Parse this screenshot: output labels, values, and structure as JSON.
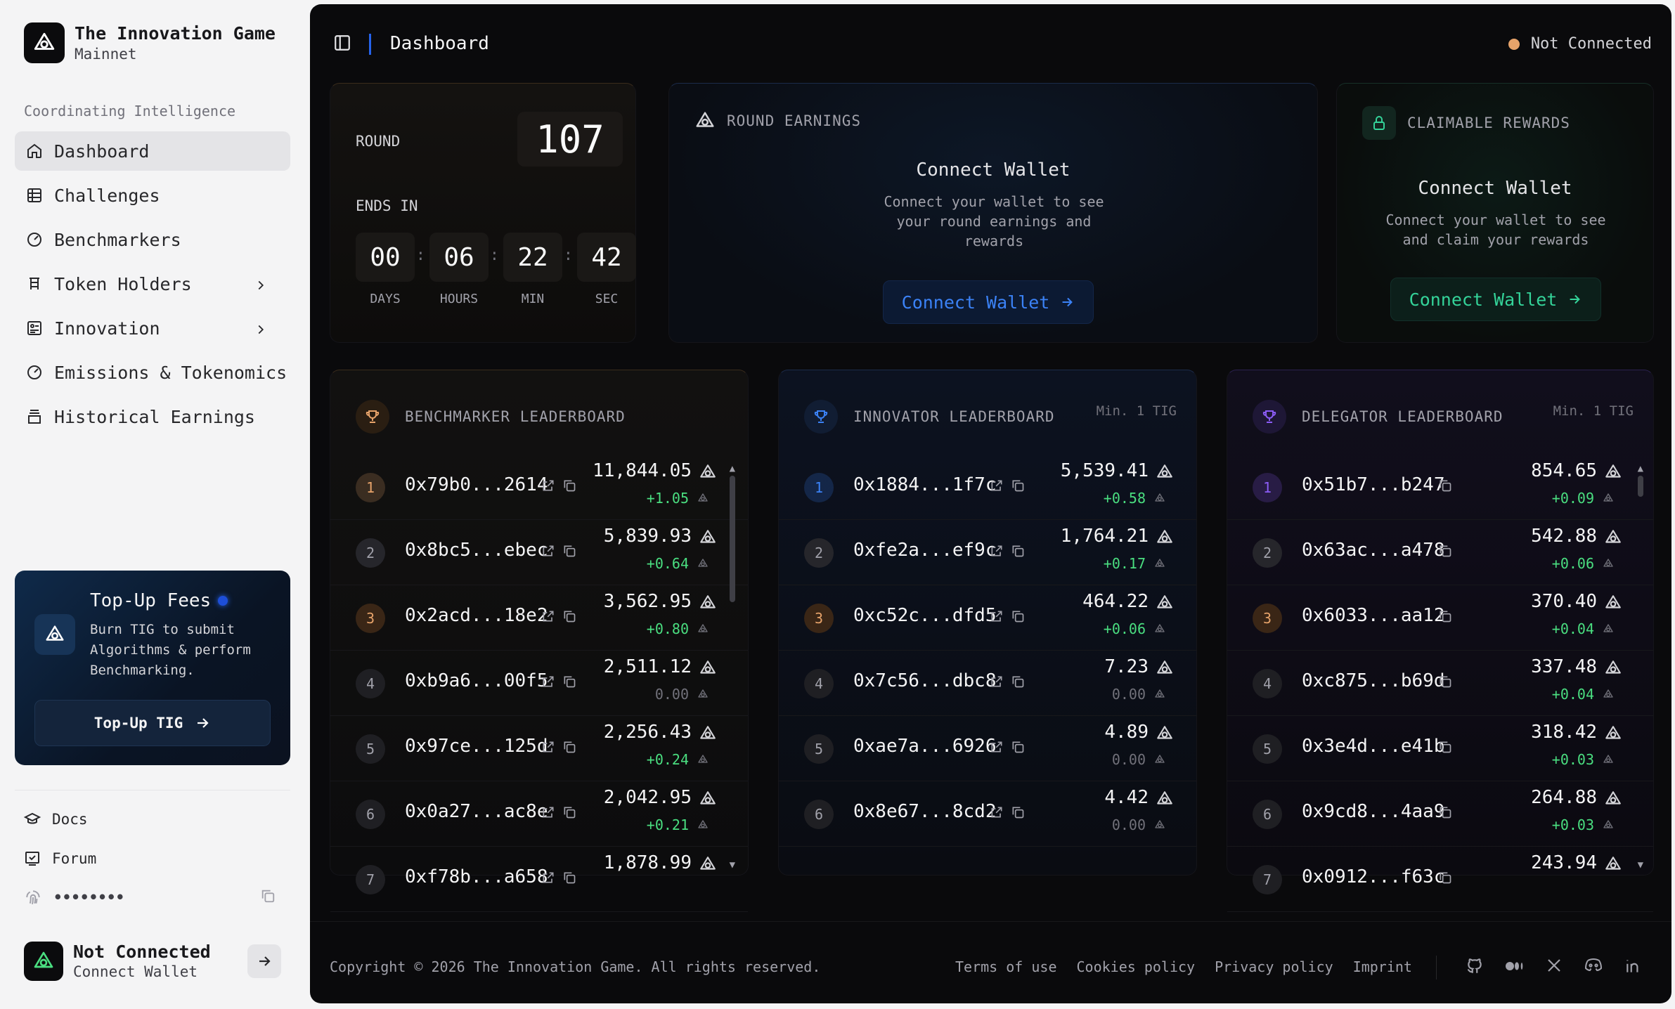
{
  "brand": {
    "title": "The Innovation Game",
    "network": "Mainnet"
  },
  "sidebar": {
    "section_label": "Coordinating Intelligence",
    "items": [
      {
        "label": "Dashboard",
        "icon": "home-icon",
        "active": true
      },
      {
        "label": "Challenges",
        "icon": "table-icon"
      },
      {
        "label": "Benchmarkers",
        "icon": "gauge-icon"
      },
      {
        "label": "Token Holders",
        "icon": "holders-icon",
        "expandable": true
      },
      {
        "label": "Innovation",
        "icon": "innovation-icon",
        "expandable": true
      },
      {
        "label": "Emissions & Tokenomics",
        "icon": "gauge-icon"
      },
      {
        "label": "Historical Earnings",
        "icon": "archive-icon"
      }
    ],
    "promo": {
      "title": "Top-Up Fees",
      "description": "Burn TIG to submit Algorithms & perform Benchmarking.",
      "button": "Top-Up TIG"
    },
    "footer_links": [
      {
        "label": "Docs",
        "icon": "graduation-cap-icon"
      },
      {
        "label": "Forum",
        "icon": "forum-icon"
      }
    ],
    "password_mask": "••••••••",
    "account": {
      "title": "Not Connected",
      "subtitle": "Connect Wallet"
    }
  },
  "topbar": {
    "title": "Dashboard",
    "status": "Not Connected"
  },
  "round": {
    "label": "ROUND",
    "value": "107",
    "ends_label": "ENDS IN",
    "countdown": [
      {
        "value": "00",
        "unit": "DAYS"
      },
      {
        "value": "06",
        "unit": "HOURS"
      },
      {
        "value": "22",
        "unit": "MIN"
      },
      {
        "value": "42",
        "unit": "SEC"
      }
    ]
  },
  "round_earnings": {
    "title": "ROUND EARNINGS",
    "heading": "Connect Wallet",
    "description": "Connect your wallet to see your round earnings and rewards",
    "button": "Connect Wallet"
  },
  "claimable": {
    "title": "CLAIMABLE REWARDS",
    "heading": "Connect Wallet",
    "description": "Connect your wallet to see and claim your rewards",
    "button": "Connect Wallet"
  },
  "leaderboards": [
    {
      "title": "BENCHMARKER LEADERBOARD",
      "min": "",
      "accent": "#e7a36a",
      "rows": [
        {
          "rank": "1",
          "address": "0x79b0...2614",
          "amount": "11,844.05",
          "delta": "+1.05"
        },
        {
          "rank": "2",
          "address": "0x8bc5...ebec",
          "amount": "5,839.93",
          "delta": "+0.64"
        },
        {
          "rank": "3",
          "address": "0x2acd...18e2",
          "amount": "3,562.95",
          "delta": "+0.80"
        },
        {
          "rank": "4",
          "address": "0xb9a6...00f5",
          "amount": "2,511.12",
          "delta": "0.00"
        },
        {
          "rank": "5",
          "address": "0x97ce...125d",
          "amount": "2,256.43",
          "delta": "+0.24"
        },
        {
          "rank": "6",
          "address": "0x0a27...ac8e",
          "amount": "2,042.95",
          "delta": "+0.21"
        },
        {
          "rank": "7",
          "address": "0xf78b...a658",
          "amount": "1,878.99",
          "delta": ""
        }
      ]
    },
    {
      "title": "INNOVATOR LEADERBOARD",
      "min": "Min. 1 TIG",
      "accent": "#3b82f6",
      "rows": [
        {
          "rank": "1",
          "address": "0x1884...1f7c",
          "amount": "5,539.41",
          "delta": "+0.58"
        },
        {
          "rank": "2",
          "address": "0xfe2a...ef9c",
          "amount": "1,764.21",
          "delta": "+0.17"
        },
        {
          "rank": "3",
          "address": "0xc52c...dfd5",
          "amount": "464.22",
          "delta": "+0.06"
        },
        {
          "rank": "4",
          "address": "0x7c56...dbc8",
          "amount": "7.23",
          "delta": "0.00"
        },
        {
          "rank": "5",
          "address": "0xae7a...6926",
          "amount": "4.89",
          "delta": "0.00"
        },
        {
          "rank": "6",
          "address": "0x8e67...8cd2",
          "amount": "4.42",
          "delta": "0.00"
        }
      ]
    },
    {
      "title": "DELEGATOR LEADERBOARD",
      "min": "Min. 1 TIG",
      "accent": "#8b5cf6",
      "rows": [
        {
          "rank": "1",
          "address": "0x51b7...b247",
          "amount": "854.65",
          "delta": "+0.09"
        },
        {
          "rank": "2",
          "address": "0x63ac...a478",
          "amount": "542.88",
          "delta": "+0.06"
        },
        {
          "rank": "3",
          "address": "0x6033...aa12",
          "amount": "370.40",
          "delta": "+0.04"
        },
        {
          "rank": "4",
          "address": "0xc875...b69d",
          "amount": "337.48",
          "delta": "+0.04"
        },
        {
          "rank": "5",
          "address": "0x3e4d...e41b",
          "amount": "318.42",
          "delta": "+0.03"
        },
        {
          "rank": "6",
          "address": "0x9cd8...4aa9",
          "amount": "264.88",
          "delta": "+0.03"
        },
        {
          "rank": "7",
          "address": "0x0912...f63c",
          "amount": "243.94",
          "delta": ""
        }
      ]
    }
  ],
  "footer": {
    "copyright": "Copyright © 2026 The Innovation Game. All rights reserved.",
    "links": [
      "Terms of use",
      "Cookies policy",
      "Privacy policy",
      "Imprint"
    ],
    "socials": [
      "github-icon",
      "medium-icon",
      "x-icon",
      "discord-icon",
      "linkedin-icon"
    ]
  }
}
